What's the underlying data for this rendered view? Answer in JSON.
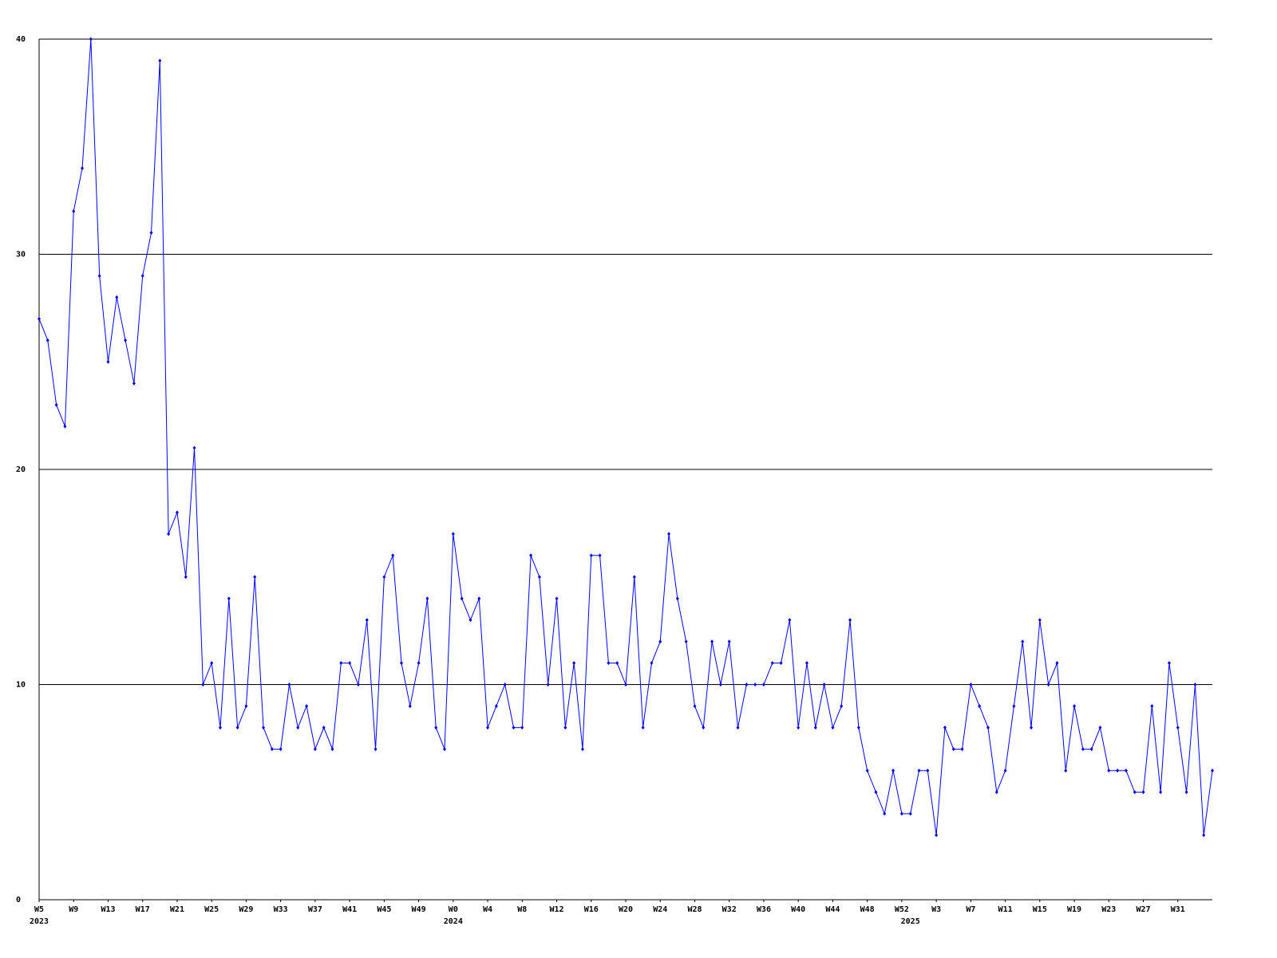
{
  "chart_data": {
    "type": "line",
    "categories": [
      "W5",
      null,
      null,
      null,
      "W9",
      null,
      null,
      null,
      "W13",
      null,
      null,
      null,
      "W17",
      null,
      null,
      null,
      "W21",
      null,
      null,
      null,
      "W25",
      null,
      null,
      null,
      "W29",
      null,
      null,
      null,
      "W33",
      null,
      null,
      null,
      "W37",
      null,
      null,
      null,
      "W41",
      null,
      null,
      null,
      "W45",
      null,
      null,
      null,
      "W49",
      null,
      null,
      null,
      "W0",
      null,
      null,
      null,
      "W4",
      null,
      null,
      null,
      "W8",
      null,
      null,
      null,
      "W12",
      null,
      null,
      null,
      "W16",
      null,
      null,
      null,
      "W20",
      null,
      null,
      null,
      "W24",
      null,
      null,
      null,
      "W28",
      null,
      null,
      null,
      "W32",
      null,
      null,
      null,
      "W36",
      null,
      null,
      null,
      "W40",
      null,
      null,
      null,
      "W44",
      null,
      null,
      null,
      "W48",
      null,
      null,
      null,
      "W52",
      null,
      null,
      null,
      "W3",
      null,
      null,
      null,
      "W7",
      null,
      null,
      null,
      "W11",
      null,
      null,
      null,
      "W15",
      null,
      null,
      null,
      "W19",
      null,
      null,
      null,
      "W23",
      null,
      null,
      null,
      "W27",
      null,
      null,
      null,
      "W31",
      null,
      null,
      null,
      null
    ],
    "category_groups": [
      "2023",
      null,
      null,
      null,
      null,
      null,
      null,
      null,
      null,
      null,
      null,
      null,
      null,
      null,
      null,
      null,
      null,
      null,
      null,
      null,
      null,
      null,
      null,
      null,
      null,
      null,
      null,
      null,
      null,
      null,
      null,
      null,
      null,
      null,
      null,
      null,
      null,
      null,
      null,
      null,
      null,
      null,
      null,
      null,
      null,
      null,
      null,
      null,
      "2024",
      null,
      null,
      null,
      null,
      null,
      null,
      null,
      null,
      null,
      null,
      null,
      null,
      null,
      null,
      null,
      null,
      null,
      null,
      null,
      null,
      null,
      null,
      null,
      null,
      null,
      null,
      null,
      null,
      null,
      null,
      null,
      null,
      null,
      null,
      null,
      null,
      null,
      null,
      null,
      null,
      null,
      null,
      null,
      null,
      null,
      null,
      null,
      null,
      null,
      null,
      null,
      null,
      "2025",
      null,
      null,
      null,
      null,
      null,
      null,
      null,
      null,
      null,
      null,
      null,
      null,
      null,
      null,
      null,
      null,
      null,
      null,
      null,
      null,
      null,
      null,
      null,
      null,
      null,
      null,
      null,
      null,
      null,
      null,
      null,
      null,
      null,
      null,
      null
    ],
    "series": [
      {
        "color": "#0000ff",
        "values": [
          27,
          26,
          23,
          22,
          32,
          34,
          40,
          29,
          25,
          28,
          26,
          24,
          29,
          31,
          39,
          17,
          18,
          15,
          21,
          10,
          11,
          8,
          14,
          8,
          9,
          15,
          8,
          7,
          7,
          10,
          8,
          9,
          7,
          8,
          7,
          11,
          11,
          10,
          13,
          7,
          15,
          16,
          11,
          9,
          11,
          14,
          8,
          7,
          17,
          14,
          13,
          14,
          8,
          9,
          10,
          8,
          8,
          16,
          15,
          10,
          14,
          8,
          11,
          7,
          16,
          16,
          11,
          11,
          10,
          15,
          8,
          11,
          12,
          17,
          14,
          12,
          9,
          8,
          12,
          10,
          12,
          8,
          10,
          10,
          10,
          11,
          11,
          13,
          8,
          11,
          8,
          10,
          8,
          9,
          13,
          8,
          6,
          5,
          4,
          6,
          4,
          4,
          6,
          6,
          3,
          8,
          7,
          7,
          10,
          9,
          8,
          5,
          6,
          9,
          12,
          8,
          13,
          10,
          11,
          6,
          9,
          7,
          7,
          8,
          6,
          6,
          6,
          5,
          5,
          9,
          5,
          11,
          8,
          5,
          10,
          3,
          6
        ]
      }
    ],
    "ylim": [
      0,
      40
    ],
    "yticks": [
      0,
      10,
      20,
      30,
      40
    ],
    "grid": true
  }
}
